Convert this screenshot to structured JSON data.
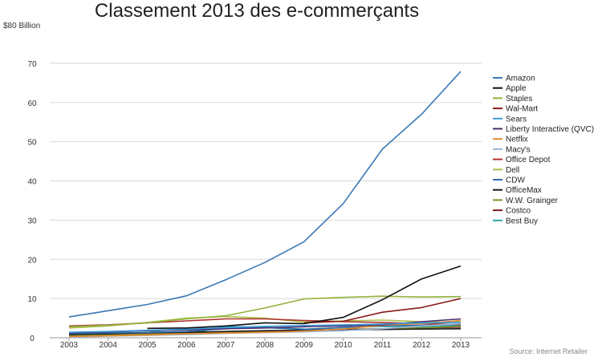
{
  "chart_data": {
    "type": "line",
    "title": "Classement 2013 des e-commerçants",
    "y_top_label": "$80 Billion",
    "source": "Source: Internet Retailer",
    "x": [
      "2003",
      "2004",
      "2005",
      "2006",
      "2007",
      "2008",
      "2009",
      "2010",
      "2011",
      "2012",
      "2013"
    ],
    "ylim": [
      0,
      80
    ],
    "yticks": [
      "0",
      "10",
      "20",
      "30",
      "40",
      "50",
      "60",
      "70"
    ],
    "grid": "horizontal",
    "legend_position": "right",
    "series": [
      {
        "name": "Amazon",
        "color": "#3a78b5",
        "values": [
          5.3,
          6.9,
          8.5,
          10.7,
          14.8,
          19.2,
          24.5,
          34.2,
          48.1,
          57.0,
          67.9
        ]
      },
      {
        "name": "Apple",
        "color": "#111111",
        "values": [
          null,
          null,
          2.4,
          2.5,
          3.0,
          3.8,
          3.6,
          5.2,
          9.7,
          15.0,
          18.3
        ]
      },
      {
        "name": "Staples",
        "color": "#93b23a",
        "values": [
          2.8,
          3.2,
          3.8,
          4.8,
          5.6,
          7.6,
          9.9,
          10.3,
          10.6,
          10.4,
          10.5
        ]
      },
      {
        "name": "Wal-Mart",
        "color": "#8b1a1a",
        "values": [
          null,
          null,
          null,
          null,
          null,
          null,
          3.8,
          4.2,
          6.5,
          7.7,
          10.0
        ]
      },
      {
        "name": "Sears",
        "color": "#3a9bd6",
        "values": [
          1.4,
          1.6,
          1.9,
          2.2,
          2.6,
          2.9,
          3.1,
          3.3,
          3.5,
          3.8,
          3.9
        ]
      },
      {
        "name": "Liberty Interactive (QVC)",
        "color": "#4a2d6e",
        "values": [
          1.2,
          1.5,
          1.8,
          2.0,
          2.3,
          2.5,
          2.8,
          3.0,
          3.3,
          4.1,
          4.8
        ]
      },
      {
        "name": "Netflix",
        "color": "#e58a2e",
        "values": [
          0.3,
          0.5,
          0.7,
          1.0,
          1.2,
          1.4,
          1.7,
          2.2,
          3.2,
          3.6,
          4.4
        ]
      },
      {
        "name": "Macy's",
        "color": "#9ab6d6",
        "values": [
          0.2,
          0.4,
          0.6,
          0.8,
          1.1,
          1.3,
          1.5,
          1.8,
          2.3,
          3.0,
          3.6
        ]
      },
      {
        "name": "Office Depot",
        "color": "#b03030",
        "values": [
          3.0,
          3.3,
          3.8,
          4.3,
          4.8,
          4.8,
          4.4,
          4.1,
          3.9,
          3.6,
          3.4
        ]
      },
      {
        "name": "Dell",
        "color": "#a8c24a",
        "values": [
          2.5,
          3.0,
          3.9,
          5.0,
          5.4,
          5.0,
          4.0,
          4.3,
          4.5,
          4.1,
          4.0
        ]
      },
      {
        "name": "CDW",
        "color": "#2f6aa8",
        "values": [
          1.0,
          1.2,
          1.3,
          1.6,
          2.3,
          2.6,
          2.1,
          2.6,
          3.0,
          3.2,
          3.4
        ]
      },
      {
        "name": "OfficeMax",
        "color": "#1a1a1a",
        "values": [
          0.8,
          1.0,
          1.3,
          1.4,
          1.6,
          1.8,
          1.9,
          2.0,
          2.1,
          2.2,
          2.3
        ]
      },
      {
        "name": "W.W. Grainger",
        "color": "#7d8f2a",
        "values": [
          0.6,
          0.7,
          0.9,
          1.1,
          1.4,
          1.7,
          1.8,
          2.0,
          2.3,
          2.5,
          2.9
        ]
      },
      {
        "name": "Costco",
        "color": "#7a1c1c",
        "values": [
          0.5,
          0.8,
          1.1,
          1.3,
          1.5,
          1.7,
          1.9,
          2.1,
          2.3,
          2.5,
          2.7
        ]
      },
      {
        "name": "Best Buy",
        "color": "#2aa6a6",
        "values": [
          1.3,
          1.5,
          1.8,
          0.9,
          2.9,
          2.6,
          2.2,
          2.6,
          2.9,
          2.8,
          3.2
        ]
      }
    ]
  }
}
